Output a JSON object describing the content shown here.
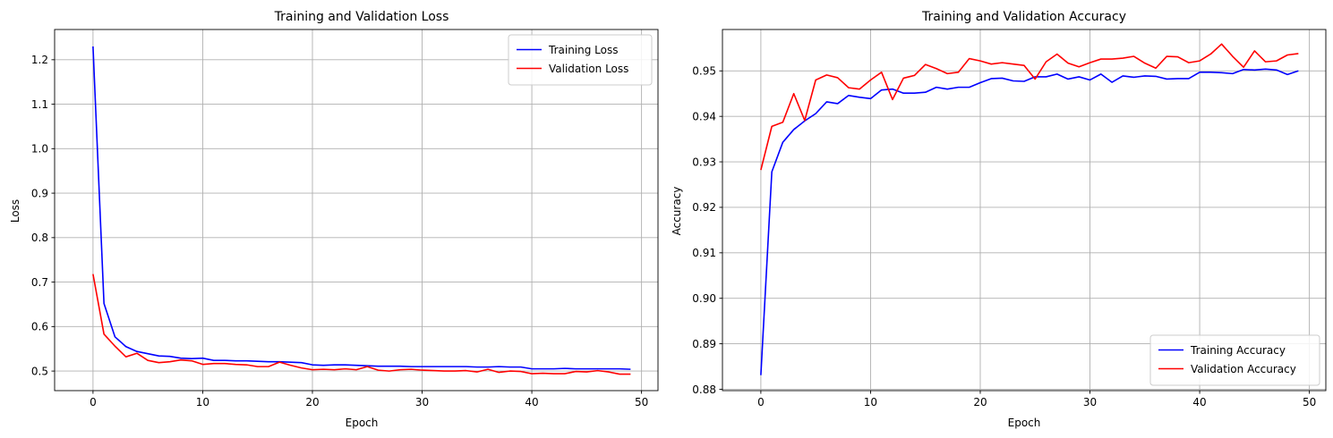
{
  "chart_data": [
    {
      "type": "line",
      "title": "Training and Validation Loss",
      "xlabel": "Epoch",
      "ylabel": "Loss",
      "xlim": [
        -3.5,
        51.5
      ],
      "ylim": [
        0.456,
        1.268
      ],
      "xticks": [
        0,
        10,
        20,
        30,
        40,
        50
      ],
      "xtick_labels": [
        "0",
        "10",
        "20",
        "30",
        "40",
        "50"
      ],
      "yticks": [
        0.5,
        0.6,
        0.7,
        0.8,
        0.9,
        1.0,
        1.1,
        1.2
      ],
      "ytick_labels": [
        "0.5",
        "0.6",
        "0.7",
        "0.8",
        "0.9",
        "1.0",
        "1.1",
        "1.2"
      ],
      "grid": true,
      "legend_position": "upper right",
      "x": [
        0,
        1,
        2,
        3,
        4,
        5,
        6,
        7,
        8,
        9,
        10,
        11,
        12,
        13,
        14,
        15,
        16,
        17,
        18,
        19,
        20,
        21,
        22,
        23,
        24,
        25,
        26,
        27,
        28,
        29,
        30,
        31,
        32,
        33,
        34,
        35,
        36,
        37,
        38,
        39,
        40,
        41,
        42,
        43,
        44,
        45,
        46,
        47,
        48,
        49
      ],
      "series": [
        {
          "name": "Training Loss",
          "color": "#0000ff",
          "values": [
            1.23,
            0.652,
            0.577,
            0.555,
            0.544,
            0.539,
            0.534,
            0.533,
            0.529,
            0.528,
            0.529,
            0.524,
            0.524,
            0.523,
            0.523,
            0.522,
            0.521,
            0.521,
            0.52,
            0.519,
            0.514,
            0.513,
            0.514,
            0.514,
            0.513,
            0.512,
            0.511,
            0.511,
            0.511,
            0.51,
            0.51,
            0.51,
            0.51,
            0.51,
            0.51,
            0.509,
            0.509,
            0.51,
            0.509,
            0.509,
            0.505,
            0.505,
            0.505,
            0.506,
            0.505,
            0.505,
            0.505,
            0.505,
            0.505,
            0.504
          ]
        },
        {
          "name": "Validation Loss",
          "color": "#ff0000",
          "values": [
            0.718,
            0.583,
            0.556,
            0.532,
            0.54,
            0.524,
            0.519,
            0.521,
            0.525,
            0.523,
            0.515,
            0.517,
            0.517,
            0.515,
            0.514,
            0.51,
            0.51,
            0.52,
            0.513,
            0.507,
            0.503,
            0.504,
            0.503,
            0.505,
            0.503,
            0.51,
            0.502,
            0.5,
            0.503,
            0.504,
            0.502,
            0.501,
            0.5,
            0.5,
            0.501,
            0.498,
            0.504,
            0.497,
            0.5,
            0.499,
            0.494,
            0.495,
            0.494,
            0.494,
            0.499,
            0.498,
            0.501,
            0.498,
            0.493,
            0.493
          ]
        }
      ]
    },
    {
      "type": "line",
      "title": "Training and Validation Accuracy",
      "xlabel": "Epoch",
      "ylabel": "Accuracy",
      "xlim": [
        -3.5,
        51.5
      ],
      "ylim": [
        0.8797,
        0.9591
      ],
      "xticks": [
        0,
        10,
        20,
        30,
        40,
        50
      ],
      "xtick_labels": [
        "0",
        "10",
        "20",
        "30",
        "40",
        "50"
      ],
      "yticks": [
        0.88,
        0.89,
        0.9,
        0.91,
        0.92,
        0.93,
        0.94,
        0.95
      ],
      "ytick_labels": [
        "0.88",
        "0.89",
        "0.90",
        "0.91",
        "0.92",
        "0.93",
        "0.94",
        "0.95"
      ],
      "grid": true,
      "legend_position": "lower right",
      "x": [
        0,
        1,
        2,
        3,
        4,
        5,
        6,
        7,
        8,
        9,
        10,
        11,
        12,
        13,
        14,
        15,
        16,
        17,
        18,
        19,
        20,
        21,
        22,
        23,
        24,
        25,
        26,
        27,
        28,
        29,
        30,
        31,
        32,
        33,
        34,
        35,
        36,
        37,
        38,
        39,
        40,
        41,
        42,
        43,
        44,
        45,
        46,
        47,
        48,
        49
      ],
      "series": [
        {
          "name": "Training Accuracy",
          "color": "#0000ff",
          "values": [
            0.8831,
            0.9278,
            0.9343,
            0.9371,
            0.939,
            0.9406,
            0.9432,
            0.9428,
            0.9446,
            0.9442,
            0.9439,
            0.9458,
            0.946,
            0.9451,
            0.9451,
            0.9453,
            0.9464,
            0.946,
            0.9464,
            0.9464,
            0.9474,
            0.9483,
            0.9484,
            0.9478,
            0.9477,
            0.9487,
            0.9487,
            0.9493,
            0.9482,
            0.9487,
            0.948,
            0.9493,
            0.9475,
            0.9489,
            0.9486,
            0.9489,
            0.9488,
            0.9482,
            0.9483,
            0.9483,
            0.9497,
            0.9497,
            0.9496,
            0.9494,
            0.9503,
            0.9502,
            0.9504,
            0.9502,
            0.9492,
            0.95
          ]
        },
        {
          "name": "Validation Accuracy",
          "color": "#ff0000",
          "values": [
            0.9282,
            0.9378,
            0.9387,
            0.945,
            0.9391,
            0.948,
            0.9491,
            0.9485,
            0.9463,
            0.946,
            0.948,
            0.9497,
            0.9437,
            0.9484,
            0.949,
            0.9514,
            0.9505,
            0.9494,
            0.9497,
            0.9527,
            0.9522,
            0.9515,
            0.9518,
            0.9515,
            0.9512,
            0.9482,
            0.952,
            0.9537,
            0.9517,
            0.9509,
            0.9518,
            0.9526,
            0.9526,
            0.9528,
            0.9532,
            0.9517,
            0.9506,
            0.9532,
            0.9531,
            0.9518,
            0.9522,
            0.9537,
            0.9559,
            0.9532,
            0.9508,
            0.9544,
            0.952,
            0.9522,
            0.9535,
            0.9538
          ]
        }
      ]
    }
  ]
}
